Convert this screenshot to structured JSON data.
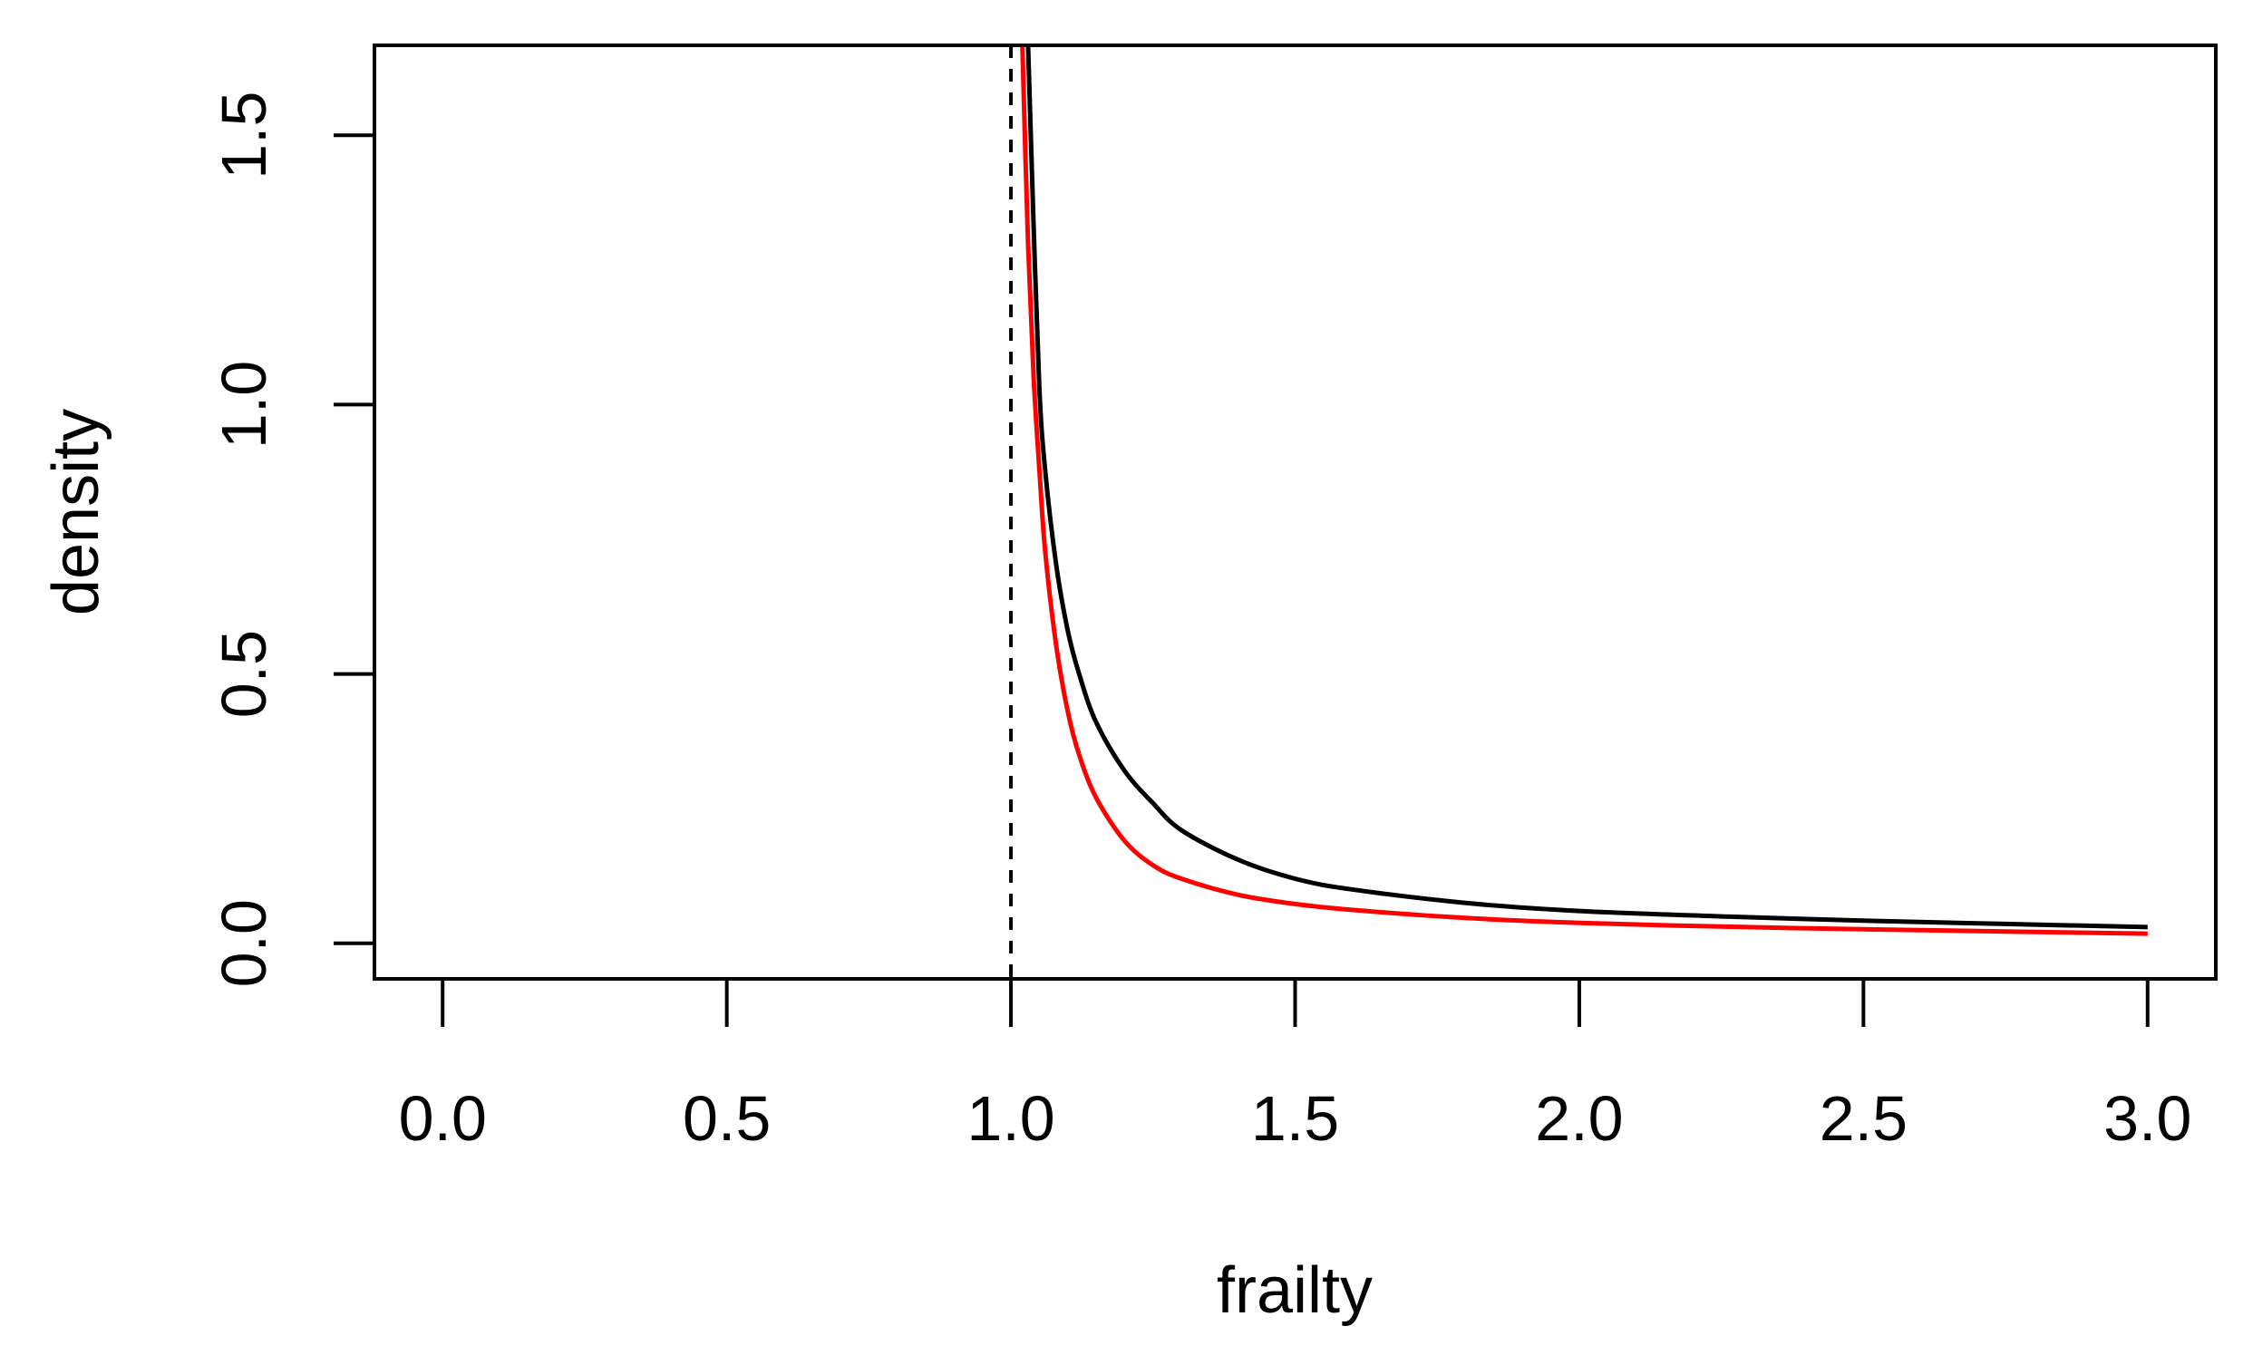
{
  "chart_data": {
    "type": "line",
    "title": "",
    "xlabel": "frailty",
    "ylabel": "density",
    "xlim": [
      -0.12,
      3.12
    ],
    "ylim": [
      -0.066,
      1.667
    ],
    "x_ticks": [
      0.0,
      0.5,
      1.0,
      1.5,
      2.0,
      2.5,
      3.0
    ],
    "x_tick_labels": [
      "0.0",
      "0.5",
      "1.0",
      "1.5",
      "2.0",
      "2.5",
      "3.0"
    ],
    "y_ticks": [
      0.0,
      0.5,
      1.0,
      1.5
    ],
    "y_tick_labels": [
      "0.0",
      "0.5",
      "1.0",
      "1.5"
    ],
    "grid": false,
    "legend": "none",
    "reference_lines": [
      {
        "orientation": "vertical",
        "x": 1.0,
        "style": "dashed",
        "color": "#000000"
      }
    ],
    "series": [
      {
        "color": "#000000",
        "x": [
          1.03,
          1.04,
          1.05,
          1.06,
          1.08,
          1.1,
          1.12,
          1.15,
          1.2,
          1.25,
          1.3,
          1.4,
          1.5,
          1.6,
          1.8,
          2.0,
          2.25,
          2.5,
          2.75,
          3.0
        ],
        "y": [
          1.67,
          1.33,
          1.03,
          0.88,
          0.7,
          0.58,
          0.5,
          0.41,
          0.32,
          0.26,
          0.21,
          0.155,
          0.12,
          0.1,
          0.075,
          0.06,
          0.05,
          0.042,
          0.036,
          0.03
        ]
      },
      {
        "color": "#ff0000",
        "x": [
          1.02,
          1.03,
          1.04,
          1.05,
          1.06,
          1.08,
          1.1,
          1.12,
          1.15,
          1.2,
          1.25,
          1.3,
          1.4,
          1.5,
          1.6,
          1.8,
          2.0,
          2.25,
          2.5,
          2.75,
          3.0
        ],
        "y": [
          1.67,
          1.3,
          1.05,
          0.88,
          0.73,
          0.55,
          0.43,
          0.35,
          0.27,
          0.19,
          0.145,
          0.12,
          0.09,
          0.073,
          0.062,
          0.047,
          0.038,
          0.031,
          0.026,
          0.022,
          0.018
        ]
      }
    ]
  },
  "colors": {
    "axis": "#000000",
    "background": "#ffffff"
  }
}
